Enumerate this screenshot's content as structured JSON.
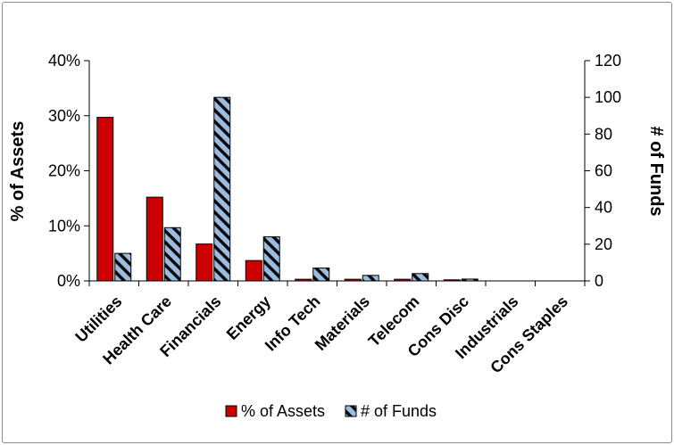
{
  "chart_data": {
    "type": "bar",
    "title": "",
    "categories": [
      "Utilities",
      "Health Care",
      "Financials",
      "Energy",
      "Info Tech",
      "Materials",
      "Telecom",
      "Cons Disc",
      "Industrials",
      "Cons Staples"
    ],
    "series": [
      {
        "name": "% of Assets",
        "axis": "left",
        "color": "#cc0000",
        "values": [
          29.7,
          15.2,
          6.7,
          3.7,
          0.3,
          0.3,
          0.3,
          0.2,
          0,
          0
        ]
      },
      {
        "name": "# of Funds",
        "axis": "right",
        "color": "#9bbbe0",
        "pattern": "diagonal-stripes",
        "values": [
          15,
          29,
          100,
          24,
          7,
          3,
          4,
          1,
          0,
          0
        ]
      }
    ],
    "y_left": {
      "label": "% of Assets",
      "lim": [
        0,
        40
      ],
      "ticks": [
        "0%",
        "10%",
        "20%",
        "30%",
        "40%"
      ]
    },
    "y_right": {
      "label": "# of Funds",
      "lim": [
        0,
        120
      ],
      "ticks": [
        "0",
        "20",
        "40",
        "60",
        "80",
        "100",
        "120"
      ]
    },
    "grid": false,
    "legend": "bottom"
  }
}
